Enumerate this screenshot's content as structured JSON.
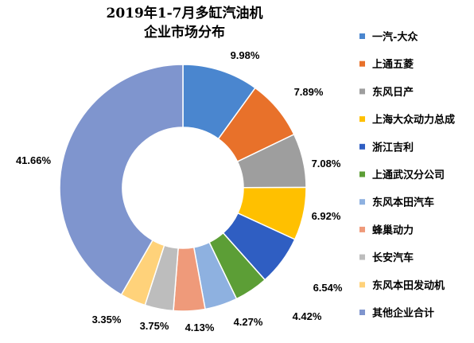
{
  "chart_data": {
    "type": "pie",
    "variant": "donut",
    "title_lines": [
      "2019年1-7月多缸汽油机",
      "企业市场分布"
    ],
    "legend_position": "right",
    "slices": [
      {
        "label": "一汽-大众",
        "value": 9.98,
        "value_label": "9.98%",
        "color": "#4A86CF"
      },
      {
        "label": "上通五菱",
        "value": 7.89,
        "value_label": "7.89%",
        "color": "#E8712A"
      },
      {
        "label": "东风日产",
        "value": 7.08,
        "value_label": "7.08%",
        "color": "#9E9E9E"
      },
      {
        "label": "上海大众动力总成",
        "value": 6.92,
        "value_label": "6.92%",
        "color": "#FFC000"
      },
      {
        "label": "浙江吉利",
        "value": 6.54,
        "value_label": "6.54%",
        "color": "#2F5EC2"
      },
      {
        "label": "上通武汉分公司",
        "value": 4.42,
        "value_label": "4.42%",
        "color": "#5C9E36"
      },
      {
        "label": "东风本田汽车",
        "value": 4.27,
        "value_label": "4.27%",
        "color": "#8EB1E0"
      },
      {
        "label": "蜂巢动力",
        "value": 4.13,
        "value_label": "4.13%",
        "color": "#EF9A7A"
      },
      {
        "label": "长安汽车",
        "value": 3.75,
        "value_label": "3.75%",
        "color": "#BDBDBD"
      },
      {
        "label": "东风本田发动机",
        "value": 3.35,
        "value_label": "3.35%",
        "color": "#FFD27A"
      },
      {
        "label": "其他企业合计",
        "value": 41.66,
        "value_label": "41.66%",
        "color": "#7F95CE"
      }
    ]
  }
}
